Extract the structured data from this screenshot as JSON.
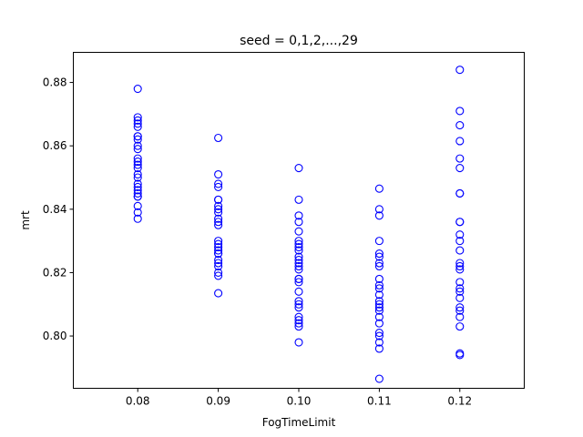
{
  "chart_data": {
    "type": "scatter",
    "title": "seed = 0,1,2,...,29",
    "xlabel": "FogTimeLimit",
    "ylabel": "mrt",
    "xlim": [
      0.072,
      0.128
    ],
    "ylim": [
      0.7835,
      0.8895
    ],
    "x_ticks": [
      0.08,
      0.09,
      0.1,
      0.11,
      0.12
    ],
    "x_tick_labels": [
      "0.08",
      "0.09",
      "0.10",
      "0.11",
      "0.12"
    ],
    "y_ticks": [
      0.8,
      0.82,
      0.84,
      0.86,
      0.88
    ],
    "y_tick_labels": [
      "0.80",
      "0.82",
      "0.84",
      "0.86",
      "0.88"
    ],
    "grid": false,
    "marker": "open-circle",
    "color": "#0000ff",
    "series": [
      {
        "x": 0.08,
        "values": [
          0.878,
          0.869,
          0.868,
          0.867,
          0.866,
          0.863,
          0.863,
          0.862,
          0.86,
          0.859,
          0.856,
          0.855,
          0.854,
          0.853,
          0.851,
          0.85,
          0.848,
          0.847,
          0.846,
          0.845,
          0.844,
          0.844,
          0.841,
          0.839,
          0.837
        ]
      },
      {
        "x": 0.09,
        "values": [
          0.8625,
          0.851,
          0.848,
          0.847,
          0.843,
          0.843,
          0.841,
          0.84,
          0.839,
          0.837,
          0.836,
          0.835,
          0.83,
          0.829,
          0.828,
          0.827,
          0.826,
          0.826,
          0.824,
          0.823,
          0.822,
          0.82,
          0.819,
          0.8135
        ]
      },
      {
        "x": 0.1,
        "values": [
          0.853,
          0.843,
          0.838,
          0.836,
          0.833,
          0.83,
          0.829,
          0.828,
          0.827,
          0.825,
          0.824,
          0.823,
          0.822,
          0.821,
          0.818,
          0.818,
          0.817,
          0.814,
          0.811,
          0.81,
          0.809,
          0.806,
          0.805,
          0.804,
          0.803,
          0.798
        ]
      },
      {
        "x": 0.11,
        "values": [
          0.8465,
          0.84,
          0.838,
          0.83,
          0.826,
          0.825,
          0.823,
          0.822,
          0.818,
          0.816,
          0.815,
          0.813,
          0.811,
          0.81,
          0.809,
          0.808,
          0.806,
          0.804,
          0.801,
          0.8,
          0.798,
          0.796,
          0.7865
        ]
      },
      {
        "x": 0.12,
        "values": [
          0.884,
          0.871,
          0.8665,
          0.8615,
          0.856,
          0.853,
          0.845,
          0.845,
          0.836,
          0.836,
          0.832,
          0.83,
          0.827,
          0.823,
          0.822,
          0.821,
          0.817,
          0.815,
          0.814,
          0.812,
          0.809,
          0.808,
          0.806,
          0.803,
          0.7945,
          0.794
        ]
      }
    ]
  }
}
